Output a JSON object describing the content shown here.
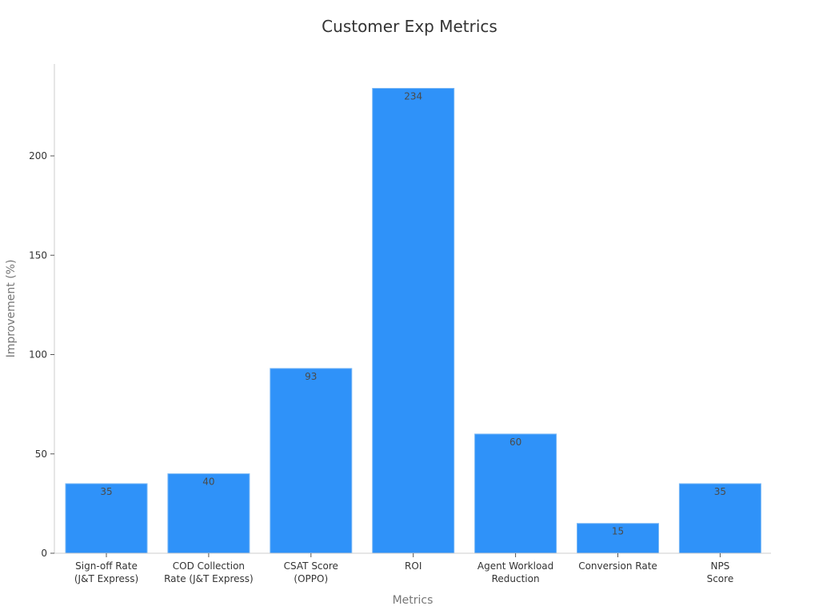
{
  "chart_data": {
    "type": "bar",
    "title": "Customer Exp Metrics",
    "xlabel": "Metrics",
    "ylabel": "Improvement (%)",
    "categories": [
      [
        "Sign-off Rate",
        "(J&T Express)"
      ],
      [
        "COD Collection",
        "Rate (J&T Express)"
      ],
      [
        "CSAT Score",
        "(OPPO)"
      ],
      [
        "ROI"
      ],
      [
        "Agent Workload",
        "Reduction"
      ],
      [
        "Conversion Rate"
      ],
      [
        "NPS",
        "Score"
      ]
    ],
    "values": [
      35,
      40,
      93,
      234,
      60,
      15,
      35
    ],
    "ylim": [
      0,
      250
    ],
    "yticks": [
      0,
      50,
      100,
      150,
      200
    ],
    "bar_color": "#2f92f9",
    "bar_edge_color": "#7ab8f5",
    "grid": false,
    "legend": "none"
  }
}
